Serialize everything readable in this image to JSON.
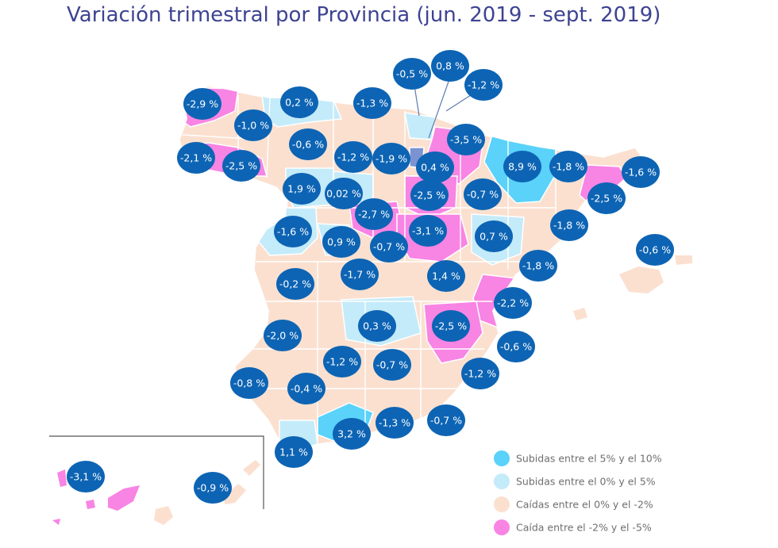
{
  "title": "Variación trimestral por Provincia (jun. 2019 - sept. 2019)",
  "colors": {
    "up_5_10": "#5ad2fa",
    "up_0_5": "#c4ebfa",
    "down_0_2": "#fbe0d0",
    "down_2_5": "#f884e4",
    "bubble": "#0d64b4",
    "border": "#ffffff"
  },
  "legend": [
    {
      "label": "Subidas entre el 5% y el 10%",
      "color": "#5ad2fa"
    },
    {
      "label": "Subidas entre el 0% y el 5%",
      "color": "#c4ebfa"
    },
    {
      "label": "Caídas entre el 0% y el -2%",
      "color": "#fbe0d0"
    },
    {
      "label": "Caída entre el -2% y el -5%",
      "color": "#f884e4"
    }
  ],
  "labels": {
    "a_coruna": "-2,9 %",
    "lugo": "-1,0 %",
    "pontevedra": "-2,1 %",
    "ourense": "-2,5 %",
    "asturias": "0,2 %",
    "cantabria": "-1,3 %",
    "bizkaia": "-0,5 %",
    "gipuzkoa": "0,8 %",
    "navarra_n": "-1,2 %",
    "leon": "-0,6 %",
    "burgos": "-1,2 %",
    "la_rioja": "-1,9 %",
    "alava": "0,4 %",
    "navarra": "-3,5 %",
    "huesca": "8,9 %",
    "lleida": "-1,8 %",
    "girona": "-1,6 %",
    "zamora": "1,9 %",
    "palencia": "0,02 %",
    "soria": "-2,5 %",
    "zaragoza": "-0,7 %",
    "barcelona": "-2,5 %",
    "valladolid": "-2,7 %",
    "segovia": "-0,7 %",
    "tarragona": "-1,8 %",
    "salamanca": "-1,6 %",
    "avila": "0,9 %",
    "guadalajara": "-3,1 %",
    "teruel": "0,7 %",
    "baleares": "-0,6 %",
    "madrid": "-1,7 %",
    "cuenca": "1,4 %",
    "castellon": "-1,8 %",
    "caceres": "-0,2 %",
    "valencia": "-2,2 %",
    "toledo": "0,3 %",
    "albacete": "-2,5 %",
    "badajoz": "-2,0 %",
    "alicante": "-0,6 %",
    "cordoba": "-1,2 %",
    "jaen": "-0,7 %",
    "murcia": "-1,2 %",
    "huelva": "-0,8 %",
    "sevilla": "-0,4 %",
    "granada": "-1,3 %",
    "almeria": "-0,7 %",
    "malaga": "3,2 %",
    "cadiz": "1,1 %",
    "tenerife": "-3,1 %",
    "las_palmas": "-0,9 %"
  }
}
